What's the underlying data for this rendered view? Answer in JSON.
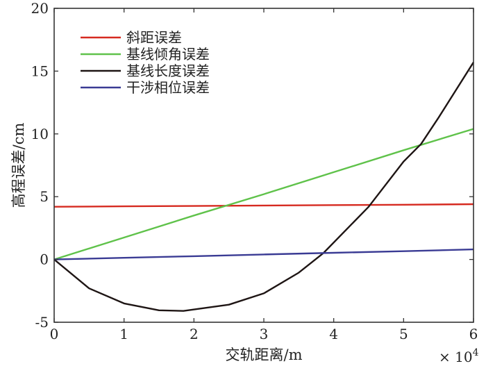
{
  "chart_data": {
    "type": "line",
    "xlabel": "交轨距离/m",
    "ylabel": "高程误差/cm",
    "x_multiplier_label": "× 10",
    "x_multiplier_exp": "4",
    "xlim": [
      0,
      6
    ],
    "ylim": [
      -5,
      20
    ],
    "xticks": [
      "0",
      "1",
      "2",
      "3",
      "4",
      "5",
      "6"
    ],
    "yticks": [
      "-5",
      "0",
      "5",
      "10",
      "15",
      "20"
    ],
    "xtick_values": [
      0,
      1,
      2,
      3,
      4,
      5,
      6
    ],
    "ytick_values": [
      -5,
      0,
      5,
      10,
      15,
      20
    ],
    "grid": false,
    "legend_position": "top-left",
    "series": [
      {
        "name": "斜距误差",
        "color": "#d62a20",
        "x": [
          0,
          1,
          2,
          3,
          4,
          5,
          6
        ],
        "y": [
          4.2,
          4.23,
          4.26,
          4.3,
          4.33,
          4.36,
          4.4
        ]
      },
      {
        "name": "基线倾角误差",
        "color": "#5fc24a",
        "x": [
          0,
          1,
          2,
          3,
          4,
          5,
          6
        ],
        "y": [
          0,
          1.75,
          3.5,
          5.2,
          6.95,
          8.7,
          10.4
        ]
      },
      {
        "name": "基线长度误差",
        "color": "#1e1514",
        "x": [
          0,
          0.5,
          1,
          1.5,
          1.85,
          2.5,
          3,
          3.5,
          3.85,
          4.5,
          5,
          5.25,
          5.5,
          6
        ],
        "y": [
          0,
          -2.3,
          -3.5,
          -4.05,
          -4.1,
          -3.6,
          -2.7,
          -1.05,
          0.5,
          4.2,
          7.8,
          9.2,
          11.3,
          15.7
        ]
      },
      {
        "name": "干涉相位误差",
        "color": "#3a3b94",
        "x": [
          0,
          1,
          2,
          3,
          4,
          5,
          6
        ],
        "y": [
          0,
          0.13,
          0.26,
          0.4,
          0.53,
          0.66,
          0.8
        ]
      }
    ]
  }
}
